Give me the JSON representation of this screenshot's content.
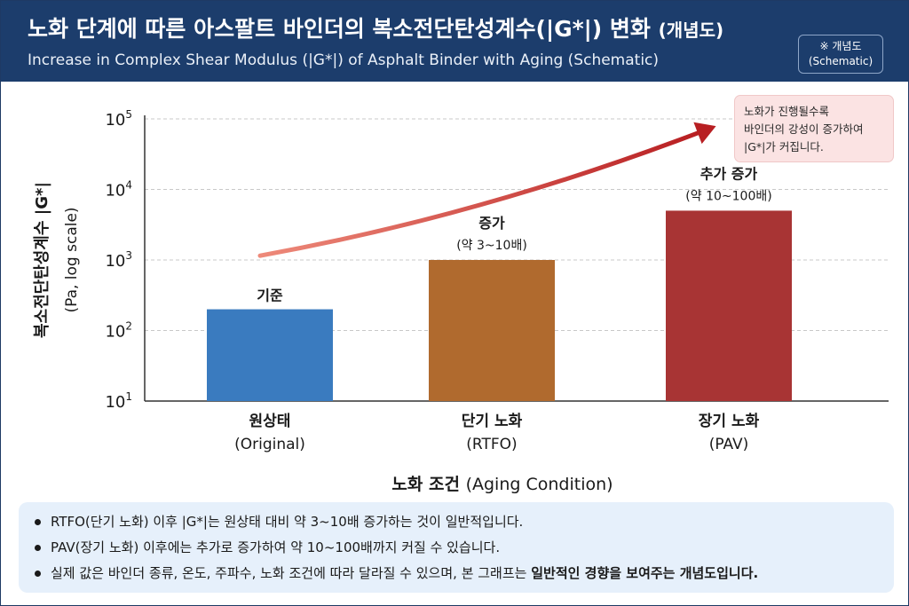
{
  "header": {
    "title_ko": "노화 단계에 따른 아스팔트 바인더의 복소전단탄성계수(|G*|) 변화",
    "title_ko_suffix": "(개념도)",
    "title_en": "Increase in Complex Shear Modulus (|G*|) of Asphalt Binder with Aging (Schematic)",
    "badge_line1": "※ 개념도",
    "badge_line2": "(Schematic)"
  },
  "note": {
    "lines": [
      "노화가 진행될수록",
      "바인더의 강성이 증가하여",
      "|G*|가 커집니다."
    ]
  },
  "footer": {
    "bullet1": "RTFO(단기 노화) 이후 |G*|는 원상태 대비 약 3~10배 증가하는 것이 일반적입니다.",
    "bullet2": "PAV(장기 노화) 이후에는 추가로 증가하여 약 10~100배까지 커질 수 있습니다.",
    "bullet3_pre": "실제 값은 바인더 종류, 온도, 주파수, 노화 조건에 따라 달라질 수 있으며, 본 그래프는 ",
    "bullet3_bold": "일반적인 경향을 보여주는 개념도입니다."
  },
  "colors": {
    "header_bg": "#1c3d6c",
    "bar_original": "#3a7bbf",
    "bar_rtfo": "#b06a2e",
    "bar_pav": "#a83434",
    "arrow_start": "#ee8a7a",
    "arrow_end": "#b81f22",
    "note_bg": "#fbe3e3",
    "footer_bg": "#e6f0fb"
  },
  "chart_data": {
    "type": "bar",
    "scale": "log",
    "ylim": [
      10,
      100000
    ],
    "y_ticks": [
      10,
      100,
      1000,
      10000,
      100000
    ],
    "ylabel": "복소전단탄성계수 |G*|",
    "ylabel_sub": "(Pa, log scale)",
    "xlabel": "노화 조건",
    "xlabel_en": "(Aging Condition)",
    "grid": true,
    "categories": [
      {
        "ko": "원상태",
        "en": "(Original)"
      },
      {
        "ko": "단기 노화",
        "en": "(RTFO)"
      },
      {
        "ko": "장기 노화",
        "en": "(PAV)"
      }
    ],
    "values": [
      200,
      1000,
      5000
    ],
    "bar_labels": [
      {
        "main": "기준",
        "sub": ""
      },
      {
        "main": "증가",
        "sub": "(약 3~10배)"
      },
      {
        "main": "추가 증가",
        "sub": "(약 10~100배)"
      }
    ],
    "trend_arrow": {
      "from": 1150,
      "to": 63000
    }
  }
}
